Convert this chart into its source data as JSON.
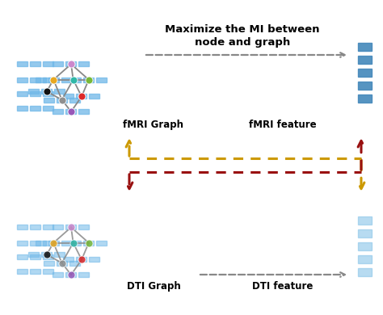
{
  "bg_color": "#ffffff",
  "infomax_text_line1": "Maximize the MI between",
  "infomax_text_line2": "node and graph",
  "fmri_label": "fMRI Graph",
  "fmri_feature_label": "fMRI feature",
  "dti_label": "DTI Graph",
  "dti_feature_label": "DTI feature",
  "node_colors": {
    "pink": "#cc88cc",
    "yellow": "#e8a820",
    "cyan": "#30b8a8",
    "green": "#78b838",
    "black": "#111111",
    "red": "#dd2828",
    "gray": "#909090",
    "purple": "#9858b8"
  },
  "edge_color": "#888888",
  "edge_lw": 1.3,
  "blue_rect_color": "#70b8e8",
  "blue_rect_dark": "#4488bb",
  "arrow_gray_color": "#888888",
  "arrow_gold_color": "#cc9900",
  "arrow_darkred_color": "#991010",
  "feature_color_top": "#4488bb",
  "feature_color_bot": "#88c4e8"
}
